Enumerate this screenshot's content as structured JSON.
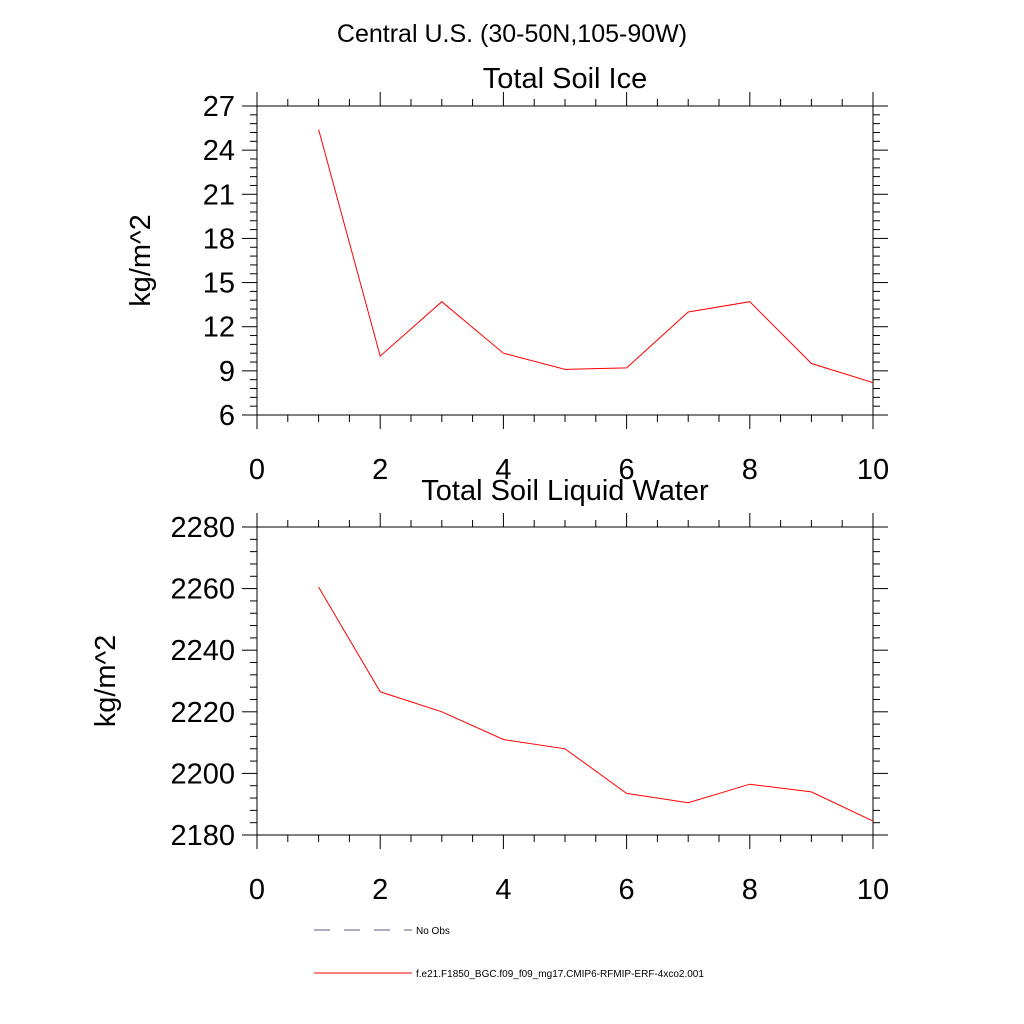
{
  "main_title": "Central U.S. (30-50N,105-90W)",
  "legend": {
    "entries": [
      {
        "label": "No Obs",
        "style": "dashed",
        "color": "#5a5a8a"
      },
      {
        "label": "f.e21.F1850_BGC.f09_f09_mg17.CMIP6-RFMIP-ERF-4xco2.001",
        "style": "solid",
        "color": "#ff0000"
      }
    ]
  },
  "chart_data": [
    {
      "type": "line",
      "title": "Total Soil Ice",
      "xlabel": "",
      "ylabel": "kg/m^2",
      "xlim": [
        0,
        10
      ],
      "ylim": [
        6,
        27
      ],
      "x_ticks": [
        0,
        2,
        4,
        6,
        8,
        10
      ],
      "y_ticks": [
        6,
        9,
        12,
        15,
        18,
        21,
        24,
        27
      ],
      "grid": false,
      "series": [
        {
          "color": "#ff0000",
          "x": [
            1,
            2,
            3,
            4,
            5,
            6,
            7,
            8,
            9,
            10
          ],
          "y": [
            25.4,
            10.0,
            13.7,
            10.2,
            9.1,
            9.2,
            13.0,
            13.7,
            9.5,
            8.2
          ]
        }
      ]
    },
    {
      "type": "line",
      "title": "Total Soil Liquid Water",
      "xlabel": "",
      "ylabel": "kg/m^2",
      "xlim": [
        0,
        10
      ],
      "ylim": [
        2180,
        2280
      ],
      "x_ticks": [
        0,
        2,
        4,
        6,
        8,
        10
      ],
      "y_ticks": [
        2180,
        2200,
        2220,
        2240,
        2260,
        2280
      ],
      "grid": false,
      "series": [
        {
          "color": "#ff0000",
          "x": [
            1,
            2,
            3,
            4,
            5,
            6,
            7,
            8,
            9,
            10
          ],
          "y": [
            2260.5,
            2226.5,
            2220.0,
            2211.0,
            2208.0,
            2193.5,
            2190.5,
            2196.5,
            2194.0,
            2184.5
          ]
        }
      ]
    }
  ]
}
